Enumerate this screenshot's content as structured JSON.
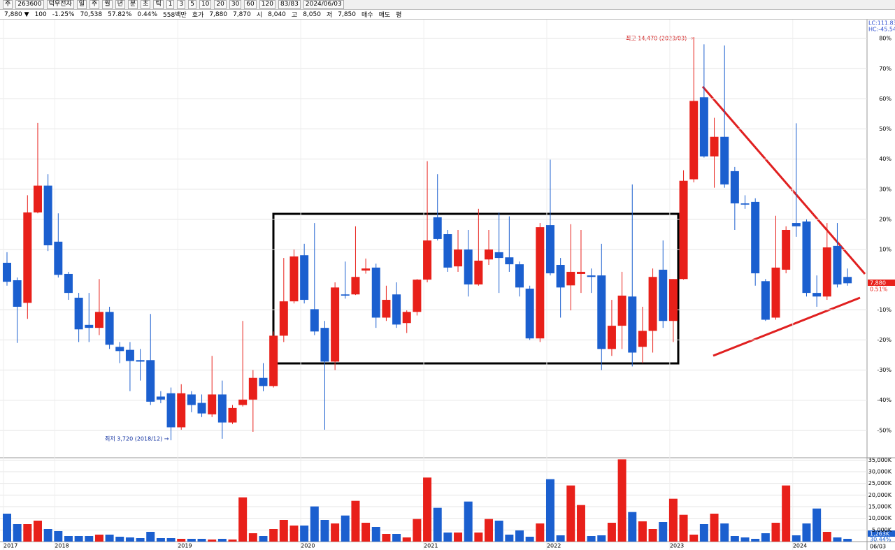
{
  "toolbar": {
    "row1": [
      "주",
      "263600",
      "덕우전자",
      "일",
      "주",
      "월",
      "년",
      "분",
      "초",
      "틱",
      "1",
      "3",
      "5",
      "10",
      "20",
      "30",
      "60",
      "120",
      "83/83",
      "2024/06/03"
    ],
    "row2": [
      "7,880 ▼",
      "100",
      "-1.25%",
      "70,538",
      "57.82%",
      "0.44%",
      "558백만",
      "호가",
      "7,880",
      "7,870",
      "시",
      "8,040",
      "고",
      "8,050",
      "저",
      "7,850",
      "매수",
      "매도",
      "평"
    ]
  },
  "chart_data": {
    "type": "candlestick",
    "up_color": "#e8201a",
    "down_color": "#1b5fcf",
    "categories": [
      "2017",
      null,
      null,
      null,
      null,
      "2018",
      null,
      null,
      null,
      null,
      null,
      null,
      null,
      null,
      null,
      null,
      null,
      "2019",
      null,
      null,
      null,
      null,
      null,
      null,
      null,
      null,
      null,
      null,
      null,
      "2020",
      null,
      null,
      null,
      null,
      null,
      null,
      null,
      null,
      null,
      null,
      null,
      "2021",
      null,
      null,
      null,
      null,
      null,
      null,
      null,
      null,
      null,
      null,
      null,
      "2022",
      null,
      null,
      null,
      null,
      null,
      null,
      null,
      null,
      null,
      null,
      null,
      "2023",
      null,
      null,
      null,
      null,
      null,
      null,
      null,
      null,
      null,
      null,
      null,
      "2024",
      null,
      null,
      null,
      null,
      null
    ],
    "open": [
      5.6,
      -0.2,
      -7.7,
      22.3,
      31.2,
      12.6,
      1.9,
      -6,
      -15,
      -16,
      -10.7,
      -22.3,
      -23.3,
      -26.7,
      -26.7,
      -38.8,
      -37.7,
      -49,
      -38.1,
      -40.9,
      -44.7,
      -38.1,
      -47.4,
      -41.6,
      -39.8,
      -32.6,
      -35.3,
      -18.6,
      -7.2,
      8.1,
      -9.8,
      -16,
      -27.2,
      -4.9,
      -4.9,
      3,
      4,
      -12.6,
      -4.9,
      -14.4,
      -10.7,
      0,
      20.7,
      15.1,
      4.4,
      10,
      -1.6,
      6.7,
      9.1,
      7.4,
      5.1,
      -3,
      -19.5,
      18.1,
      4.9,
      -1.9,
      1.9,
      1.4,
      1.4,
      -23,
      -15.3,
      -5.6,
      -22.3,
      -17,
      3.3,
      -13.7,
      0.2,
      33.3,
      60.5,
      40.9,
      47.4,
      36,
      25.3,
      25.8,
      -0.5,
      -12.6,
      3.3,
      18.8,
      19.3,
      -4.4,
      -5.6,
      11.2,
      0.9
    ],
    "close": [
      -0.7,
      -9,
      22.3,
      31.2,
      11.4,
      1.6,
      -4.4,
      -16.5,
      -16,
      -10.7,
      -21.6,
      -23.7,
      -27,
      -27.2,
      -40.5,
      -39.8,
      -49,
      -37.7,
      -41.6,
      -44.4,
      -38.1,
      -47.4,
      -42.6,
      -39.8,
      -32.6,
      -35.3,
      -18.6,
      -7.2,
      7.7,
      -6.7,
      -17.2,
      -27.2,
      -2.6,
      -5.3,
      0.9,
      3.7,
      -12.6,
      -6.7,
      -14.9,
      -10.7,
      0,
      13,
      13.5,
      4,
      10,
      -1.6,
      6.3,
      10,
      7.2,
      5.1,
      -2.6,
      -19.5,
      17.4,
      2.1,
      -2.6,
      2.6,
      2.6,
      0.9,
      -23,
      -15.3,
      -5.3,
      -24.2,
      -17,
      0.9,
      -13.7,
      0.2,
      32.8,
      59.3,
      40.9,
      47.4,
      31.6,
      25.3,
      24.9,
      2.1,
      -13.3,
      4,
      16.5,
      17.7,
      -4.4,
      -5.6,
      10.7,
      -1.6,
      -1.2
    ],
    "high": [
      9.1,
      0.7,
      28,
      52,
      35,
      22,
      2.6,
      -4.4,
      -4.4,
      0.2,
      -9,
      -20.7,
      -20.7,
      -23,
      -11.4,
      -37,
      -35.8,
      -34.7,
      -37,
      -38.1,
      -25.3,
      -33.5,
      -41.6,
      -13.7,
      -30,
      -27.7,
      -17.2,
      7.2,
      10,
      11.9,
      18.8,
      -13.7,
      -0.9,
      6,
      17.7,
      7,
      5.3,
      -2,
      -0.9,
      -10.2,
      0.2,
      39.3,
      35,
      16.5,
      16.5,
      16.5,
      23.5,
      16.5,
      22.3,
      21,
      6,
      -2,
      18.8,
      39.8,
      7.2,
      18.4,
      16.5,
      3.7,
      11.9,
      -6.7,
      2.6,
      31.6,
      -9,
      3.7,
      13,
      0.2,
      36.3,
      80.5,
      78.1,
      53.7,
      77.7,
      37.4,
      28,
      27,
      0.2,
      21.2,
      17.7,
      51.9,
      20,
      1.4,
      18.8,
      18.8,
      3.7
    ],
    "low": [
      -2,
      -21,
      -13,
      22,
      9.5,
      0.7,
      -6.7,
      -20.7,
      -20.7,
      -18.4,
      -23,
      -27.7,
      -37,
      -33.5,
      -41.6,
      -41,
      -53.3,
      -49.8,
      -44,
      -45.6,
      -45.6,
      -52.8,
      -47.9,
      -42.1,
      -50.5,
      -37,
      -35.8,
      -20.7,
      -7.9,
      -7.9,
      -18.4,
      -49.8,
      -30,
      -6.3,
      -5.1,
      2,
      -16,
      -13.7,
      -16,
      -17.7,
      -11.9,
      -0.9,
      13,
      2.6,
      2.6,
      -5.6,
      -2,
      4.9,
      -4.4,
      2.6,
      -5.6,
      -20,
      -20.7,
      1.4,
      -12.6,
      -10.2,
      -4.4,
      -4.4,
      -30,
      -25.3,
      -23,
      -28.8,
      -27.7,
      -24.2,
      -16,
      -20.7,
      0,
      32.3,
      40.5,
      30.5,
      30.5,
      16.5,
      23.5,
      -2,
      -13.7,
      -13.3,
      2.1,
      14.2,
      -5.6,
      -9,
      -6.7,
      -2.6,
      -2
    ],
    "volume": [
      12000,
      7500,
      7500,
      9000,
      5400,
      4500,
      2400,
      2400,
      2400,
      3000,
      3000,
      2100,
      1800,
      1500,
      4200,
      1500,
      1500,
      1200,
      1200,
      1200,
      900,
      1200,
      900,
      19000,
      3600,
      2400,
      5400,
      9300,
      6900,
      6900,
      15100,
      9300,
      7800,
      11200,
      17500,
      8100,
      6300,
      3300,
      3300,
      1800,
      9700,
      27500,
      14500,
      3900,
      3900,
      17200,
      3900,
      9700,
      9000,
      3000,
      4800,
      2100,
      7800,
      26800,
      2700,
      24100,
      15700,
      2400,
      2700,
      8100,
      35300,
      12700,
      8700,
      5400,
      8400,
      18400,
      11500,
      3000,
      7500,
      12000,
      7800,
      2400,
      1800,
      1200,
      3600,
      8100,
      24100,
      2700,
      7800,
      14200,
      4200,
      1800,
      1200
    ],
    "ylim": [
      -59.1,
      86.3
    ],
    "yticks": [
      {
        "value": 80,
        "label": "80%"
      },
      {
        "value": 70,
        "label": "70%"
      },
      {
        "value": 60,
        "label": "60%"
      },
      {
        "value": 50,
        "label": "50%"
      },
      {
        "value": 40,
        "label": "40%"
      },
      {
        "value": 30,
        "label": "30%"
      },
      {
        "value": 20,
        "label": "20%"
      },
      {
        "value": 10,
        "label": "10%"
      },
      {
        "value": -10,
        "label": "-10%"
      },
      {
        "value": -20,
        "label": "-20%"
      },
      {
        "value": -30,
        "label": "-30%"
      },
      {
        "value": -40,
        "label": "-40%"
      },
      {
        "value": -50,
        "label": "-50%"
      }
    ],
    "vol_ylim": [
      0,
      36000
    ],
    "vol_ticks": [
      {
        "value": 35000,
        "label": "35,000K"
      },
      {
        "value": 30000,
        "label": "30,000K"
      },
      {
        "value": 25000,
        "label": "25,000K"
      },
      {
        "value": 20000,
        "label": "20,000K"
      },
      {
        "value": 15000,
        "label": "15,000K"
      },
      {
        "value": 10000,
        "label": "10,000K"
      },
      {
        "value": 5000,
        "label": "5,000K"
      }
    ],
    "annotations": {
      "high": "최고 14,470 (2023/03) →",
      "low": "최저 3,720 (2018/12) →"
    },
    "axis_info": {
      "lc": "LC:111.83",
      "hc": "HC:-45.54",
      "price": "7,880",
      "pct": "0.51%",
      "vol": "1,263K",
      "vol_pct": "30.44%",
      "end_date": "06/03"
    }
  }
}
